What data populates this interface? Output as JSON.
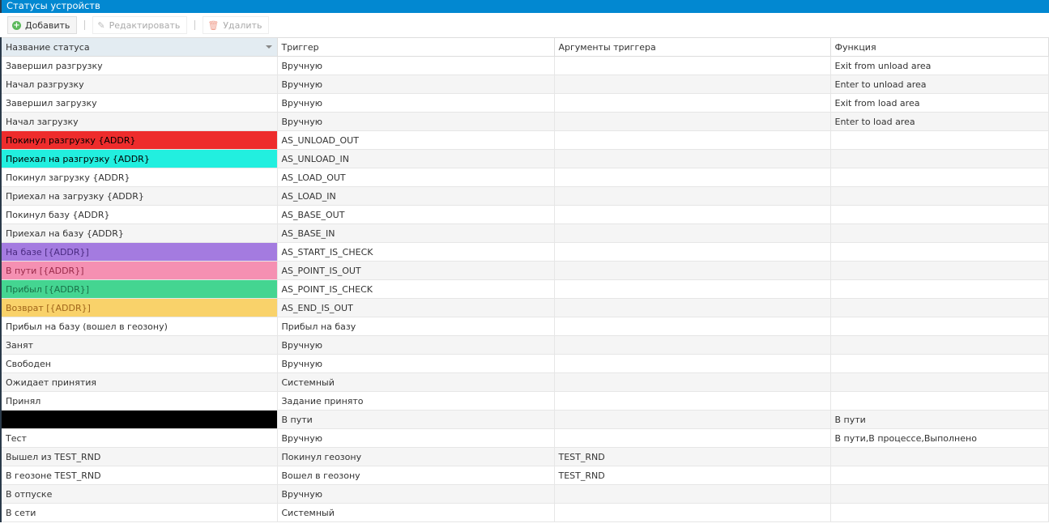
{
  "window_title": "Статусы устройств",
  "toolbar": {
    "add": "Добавить",
    "edit": "Редактировать",
    "delete": "Удалить"
  },
  "columns": [
    "Название статуса",
    "Триггер",
    "Аргументы триггера",
    "Функция"
  ],
  "rows": [
    {
      "name": "Завершил разгрузку",
      "trigger": "Вручную",
      "args": "",
      "func": "Exit from unload area"
    },
    {
      "name": "Начал разгрузку",
      "trigger": "Вручную",
      "args": "",
      "func": "Enter to unload area"
    },
    {
      "name": "Завершил загрузку",
      "trigger": "Вручную",
      "args": "",
      "func": "Exit from load area"
    },
    {
      "name": "Начал загрузку",
      "trigger": "Вручную",
      "args": "",
      "func": "Enter to load area"
    },
    {
      "name": "Покинул разгрузку {ADDR}",
      "trigger": "AS_UNLOAD_OUT",
      "args": "",
      "func": "",
      "bg": "#ee2c2c",
      "fg": "#000000"
    },
    {
      "name": "Приехал на разгрузку {ADDR}",
      "trigger": "AS_UNLOAD_IN",
      "args": "",
      "func": "",
      "bg": "#22efdf",
      "fg": "#000000"
    },
    {
      "name": "Покинул загрузку {ADDR}",
      "trigger": "AS_LOAD_OUT",
      "args": "",
      "func": ""
    },
    {
      "name": "Приехал на загрузку {ADDR}",
      "trigger": "AS_LOAD_IN",
      "args": "",
      "func": ""
    },
    {
      "name": "Покинул базу {ADDR}",
      "trigger": "AS_BASE_OUT",
      "args": "",
      "func": ""
    },
    {
      "name": "Приехал на базу {ADDR}",
      "trigger": "AS_BASE_IN",
      "args": "",
      "func": ""
    },
    {
      "name": "На базе [{ADDR}]",
      "trigger": "AS_START_IS_CHECK",
      "args": "",
      "func": "",
      "bg": "#a47be0",
      "fg": "#4a2a80"
    },
    {
      "name": "В пути [{ADDR}]",
      "trigger": "AS_POINT_IS_OUT",
      "args": "",
      "func": "",
      "bg": "#f590b2",
      "fg": "#9a2a4a"
    },
    {
      "name": "Прибыл [{ADDR}]",
      "trigger": "AS_POINT_IS_CHECK",
      "args": "",
      "func": "",
      "bg": "#44d591",
      "fg": "#1a7048"
    },
    {
      "name": "Возврат [{ADDR}]",
      "trigger": "AS_END_IS_OUT",
      "args": "",
      "func": "",
      "bg": "#f9d26a",
      "fg": "#a0651a"
    },
    {
      "name": "Прибыл на базу (вошел в геозону)",
      "trigger": "Прибыл на базу",
      "args": "",
      "func": ""
    },
    {
      "name": "Занят",
      "trigger": "Вручную",
      "args": "",
      "func": ""
    },
    {
      "name": "Свободен",
      "trigger": "Вручную",
      "args": "",
      "func": ""
    },
    {
      "name": "Ожидает принятия",
      "trigger": "Системный",
      "args": "",
      "func": ""
    },
    {
      "name": "Принял",
      "trigger": "Задание принято",
      "args": "",
      "func": ""
    },
    {
      "name": "",
      "trigger": "В пути",
      "args": "",
      "func": "В пути",
      "bg": "#000000",
      "fg": "#000000"
    },
    {
      "name": "Тест",
      "trigger": "Вручную",
      "args": "",
      "func": "В пути,В процессе,Выполнено"
    },
    {
      "name": "Вышел из TEST_RND",
      "trigger": "Покинул геозону",
      "args": "TEST_RND",
      "func": ""
    },
    {
      "name": "В геозоне TEST_RND",
      "trigger": "Вошел в геозону",
      "args": "TEST_RND",
      "func": ""
    },
    {
      "name": "В отпуске",
      "trigger": "Вручную",
      "args": "",
      "func": ""
    },
    {
      "name": "В сети",
      "trigger": "Системный",
      "args": "",
      "func": ""
    }
  ]
}
